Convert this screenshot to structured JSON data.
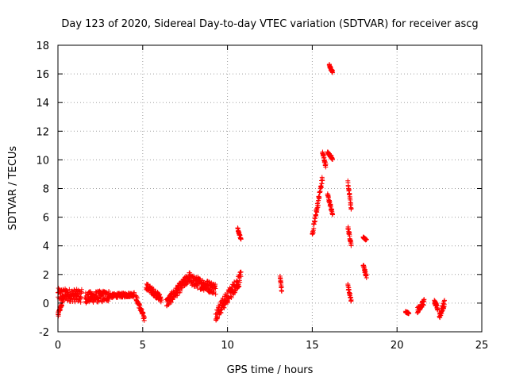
{
  "chart_data": {
    "type": "scatter",
    "title": "Day 123 of 2020, Sidereal Day-to-day VTEC variation (SDTVAR) for receiver ascg",
    "xlabel": "GPS time / hours",
    "ylabel": "SDTVAR / TECUs",
    "xlim": [
      0,
      25
    ],
    "ylim": [
      -2,
      18
    ],
    "xticks": [
      0,
      5,
      10,
      15,
      20,
      25
    ],
    "yticks": [
      -2,
      0,
      2,
      4,
      6,
      8,
      10,
      12,
      14,
      16,
      18
    ],
    "grid": true,
    "marker": "+",
    "color": "#ff0000",
    "clusters": [
      {
        "x_start": 0.0,
        "x_end": 1.4,
        "y_start": 0.6,
        "y_end": 0.5,
        "spread": 0.9
      },
      {
        "x_start": 0.0,
        "x_end": 0.3,
        "y_start": -0.8,
        "y_end": 0.2,
        "spread": 0.4
      },
      {
        "x_start": 1.6,
        "x_end": 3.0,
        "y_start": 0.4,
        "y_end": 0.5,
        "spread": 0.8
      },
      {
        "x_start": 3.0,
        "x_end": 4.5,
        "y_start": 0.5,
        "y_end": 0.6,
        "spread": 0.3
      },
      {
        "x_start": 4.6,
        "x_end": 5.1,
        "y_start": 0.4,
        "y_end": -1.1,
        "spread": 0.4
      },
      {
        "x_start": 5.2,
        "x_end": 6.1,
        "y_start": 1.2,
        "y_end": 0.3,
        "spread": 0.5
      },
      {
        "x_start": 6.4,
        "x_end": 7.8,
        "y_start": 0.0,
        "y_end": 1.9,
        "spread": 0.7
      },
      {
        "x_start": 7.8,
        "x_end": 9.3,
        "y_start": 1.6,
        "y_end": 1.0,
        "spread": 0.8
      },
      {
        "x_start": 9.3,
        "x_end": 10.8,
        "y_start": -0.8,
        "y_end": 1.8,
        "spread": 0.9
      },
      {
        "x_start": 10.6,
        "x_end": 10.8,
        "y_start": 5.2,
        "y_end": 4.4,
        "spread": 0.2
      },
      {
        "x_start": 13.1,
        "x_end": 13.2,
        "y_start": 1.9,
        "y_end": 0.8,
        "spread": 0.2
      },
      {
        "x_start": 15.0,
        "x_end": 15.6,
        "y_start": 4.8,
        "y_end": 8.7,
        "spread": 0.5
      },
      {
        "x_start": 15.6,
        "x_end": 15.8,
        "y_start": 10.5,
        "y_end": 9.6,
        "spread": 0.3
      },
      {
        "x_start": 15.9,
        "x_end": 16.2,
        "y_start": 10.5,
        "y_end": 10.1,
        "spread": 0.2
      },
      {
        "x_start": 16.0,
        "x_end": 16.2,
        "y_start": 16.6,
        "y_end": 16.1,
        "spread": 0.2
      },
      {
        "x_start": 15.9,
        "x_end": 16.2,
        "y_start": 7.6,
        "y_end": 6.2,
        "spread": 0.3
      },
      {
        "x_start": 17.1,
        "x_end": 17.3,
        "y_start": 8.4,
        "y_end": 6.6,
        "spread": 0.3
      },
      {
        "x_start": 17.1,
        "x_end": 17.3,
        "y_start": 5.3,
        "y_end": 4.1,
        "spread": 0.3
      },
      {
        "x_start": 17.1,
        "x_end": 17.3,
        "y_start": 1.2,
        "y_end": 0.2,
        "spread": 0.3
      },
      {
        "x_start": 18.0,
        "x_end": 18.2,
        "y_start": 4.6,
        "y_end": 4.4,
        "spread": 0.1
      },
      {
        "x_start": 18.0,
        "x_end": 18.2,
        "y_start": 2.7,
        "y_end": 1.8,
        "spread": 0.3
      },
      {
        "x_start": 20.5,
        "x_end": 20.7,
        "y_start": -0.6,
        "y_end": -0.7,
        "spread": 0.1
      },
      {
        "x_start": 21.2,
        "x_end": 21.6,
        "y_start": -0.5,
        "y_end": 0.1,
        "spread": 0.4
      },
      {
        "x_start": 22.2,
        "x_end": 22.4,
        "y_start": 0.1,
        "y_end": -0.4,
        "spread": 0.3
      },
      {
        "x_start": 22.5,
        "x_end": 22.8,
        "y_start": -0.9,
        "y_end": 0.0,
        "spread": 0.5
      }
    ]
  }
}
